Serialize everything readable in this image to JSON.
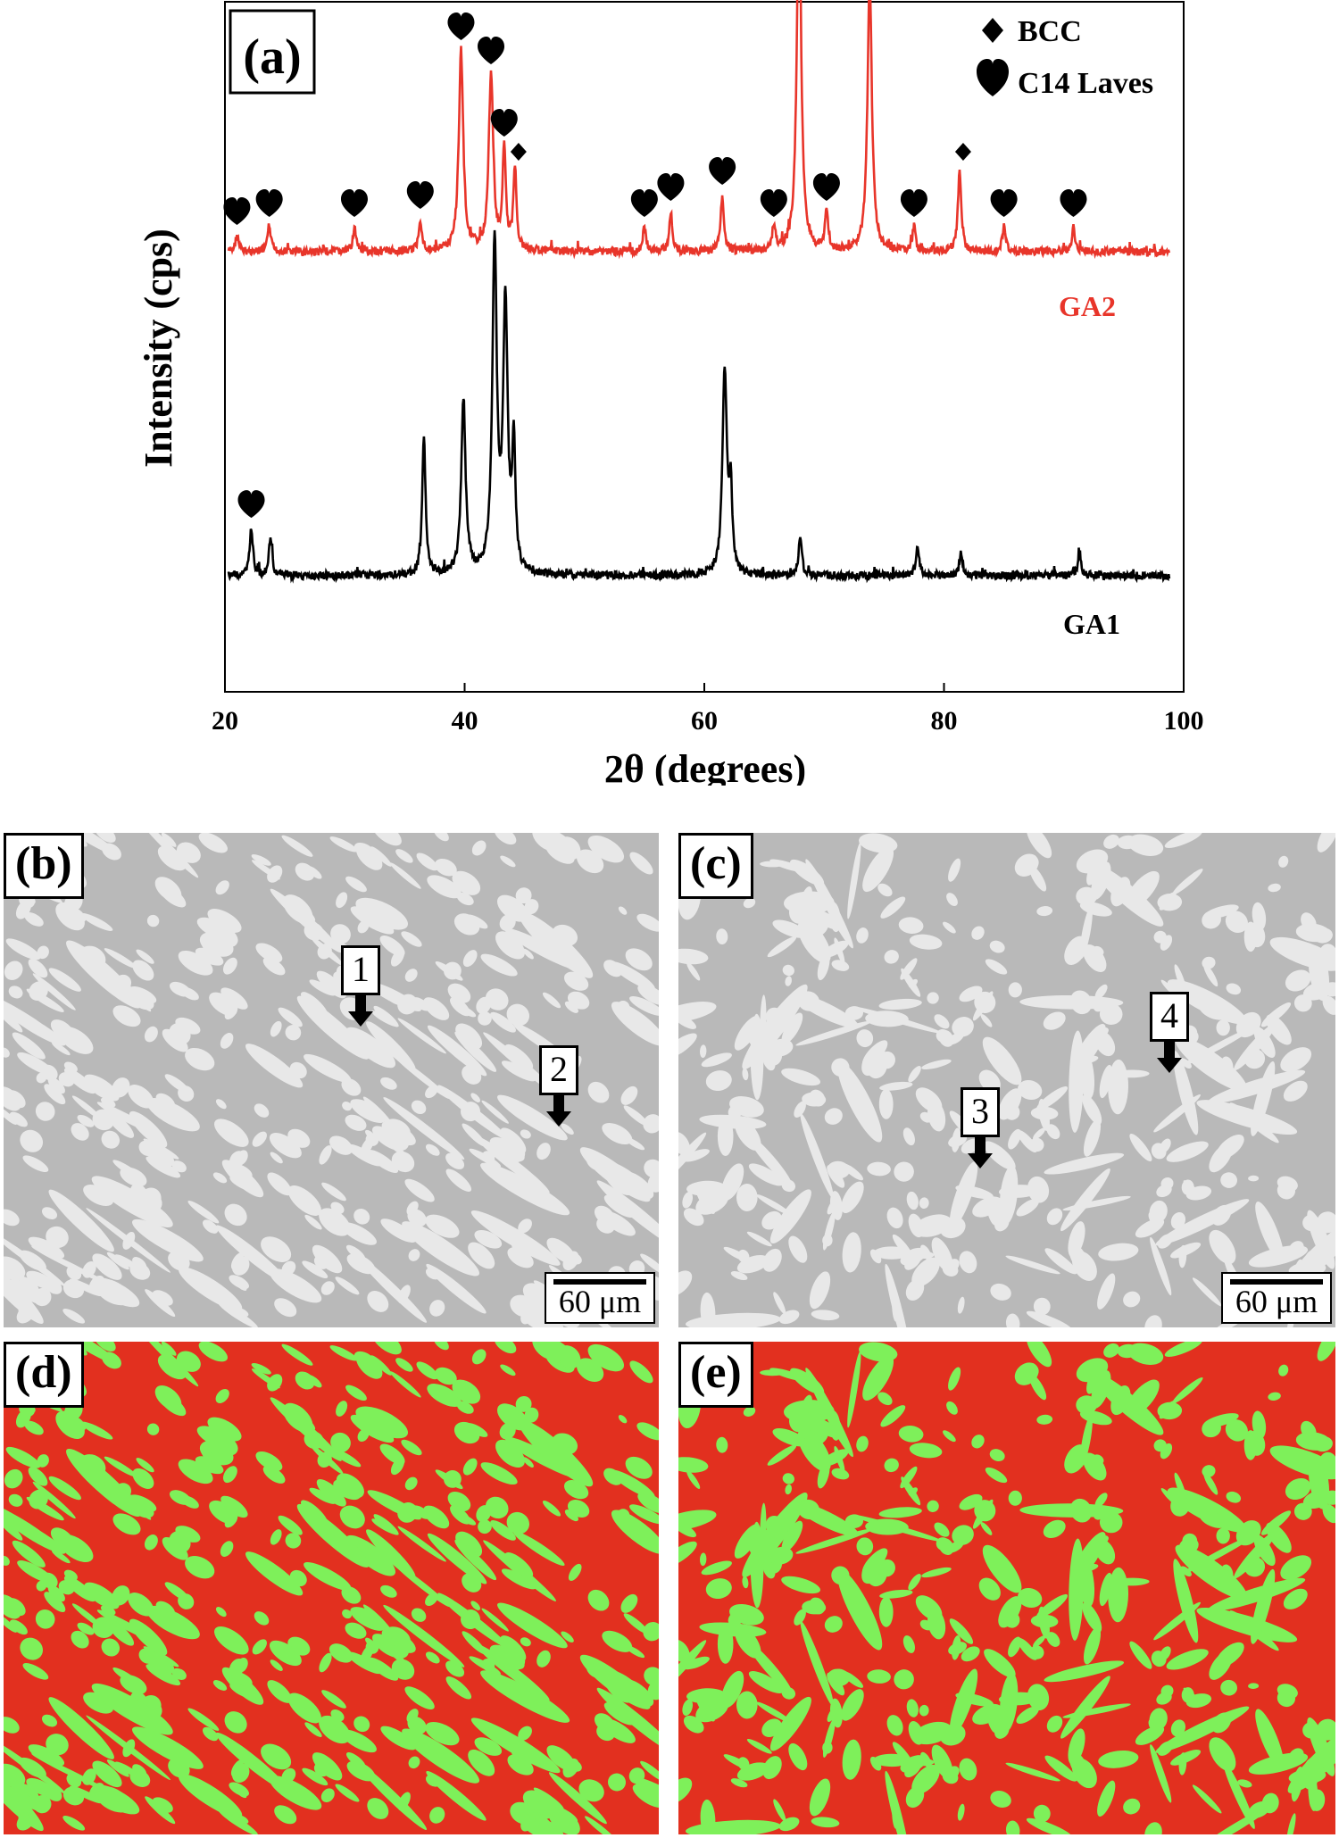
{
  "chart_data": {
    "type": "line",
    "panel_label": "(a)",
    "xlabel": "2θ (degrees)",
    "ylabel": "Intensity (cps)",
    "xlim": [
      20,
      100
    ],
    "x_ticks": [
      20,
      40,
      60,
      80,
      100
    ],
    "legend": {
      "position": "top-right",
      "entries": [
        {
          "symbol": "diamond",
          "label": "BCC"
        },
        {
          "symbol": "heart",
          "label": "C14 Laves"
        }
      ]
    },
    "series": [
      {
        "name": "GA2",
        "color": "#e8352a",
        "peaks": [
          {
            "x": 21.0,
            "h": 2
          },
          {
            "x": 23.7,
            "h": 3
          },
          {
            "x": 30.8,
            "h": 3
          },
          {
            "x": 36.3,
            "h": 4
          },
          {
            "x": 39.7,
            "h": 25
          },
          {
            "x": 42.2,
            "h": 22
          },
          {
            "x": 43.3,
            "h": 13
          },
          {
            "x": 44.2,
            "h": 10
          },
          {
            "x": 55.0,
            "h": 3
          },
          {
            "x": 57.2,
            "h": 5
          },
          {
            "x": 61.5,
            "h": 7
          },
          {
            "x": 65.8,
            "h": 3
          },
          {
            "x": 67.9,
            "h": 44
          },
          {
            "x": 70.2,
            "h": 5
          },
          {
            "x": 73.8,
            "h": 34
          },
          {
            "x": 77.5,
            "h": 3
          },
          {
            "x": 81.3,
            "h": 10
          },
          {
            "x": 85.0,
            "h": 3
          },
          {
            "x": 90.8,
            "h": 3
          }
        ],
        "heart_markers": [
          21.0,
          23.7,
          30.8,
          36.3,
          39.7,
          42.2,
          43.3,
          55.0,
          57.2,
          61.5,
          65.8,
          67.9,
          70.2,
          73.8,
          77.5,
          85.0,
          90.8
        ],
        "diamond_markers": [
          44.2,
          81.3
        ]
      },
      {
        "name": "GA1",
        "color": "#000000",
        "peaks": [
          {
            "x": 22.2,
            "h": 6
          },
          {
            "x": 23.8,
            "h": 5
          },
          {
            "x": 36.6,
            "h": 18
          },
          {
            "x": 39.9,
            "h": 22
          },
          {
            "x": 42.5,
            "h": 42
          },
          {
            "x": 43.4,
            "h": 34
          },
          {
            "x": 44.1,
            "h": 16
          },
          {
            "x": 61.7,
            "h": 26
          },
          {
            "x": 62.2,
            "h": 10
          },
          {
            "x": 68.0,
            "h": 5
          },
          {
            "x": 77.8,
            "h": 4
          },
          {
            "x": 81.4,
            "h": 3
          },
          {
            "x": 91.3,
            "h": 3
          }
        ],
        "heart_markers": [
          22.2
        ],
        "diamond_markers": []
      }
    ]
  },
  "micrographs": {
    "b": {
      "label": "(b)",
      "markers": [
        "1",
        "2"
      ],
      "scale": "60 μm"
    },
    "c": {
      "label": "(c)",
      "markers": [
        "3",
        "4"
      ],
      "scale": "60 μm"
    },
    "d": {
      "label": "(d)"
    },
    "e": {
      "label": "(e)"
    }
  },
  "colors": {
    "matrix_red": "#e2301f",
    "phase_green": "#7ef05a",
    "sem_dark": "#b9b9b9",
    "sem_light": "#e8e8e8"
  }
}
